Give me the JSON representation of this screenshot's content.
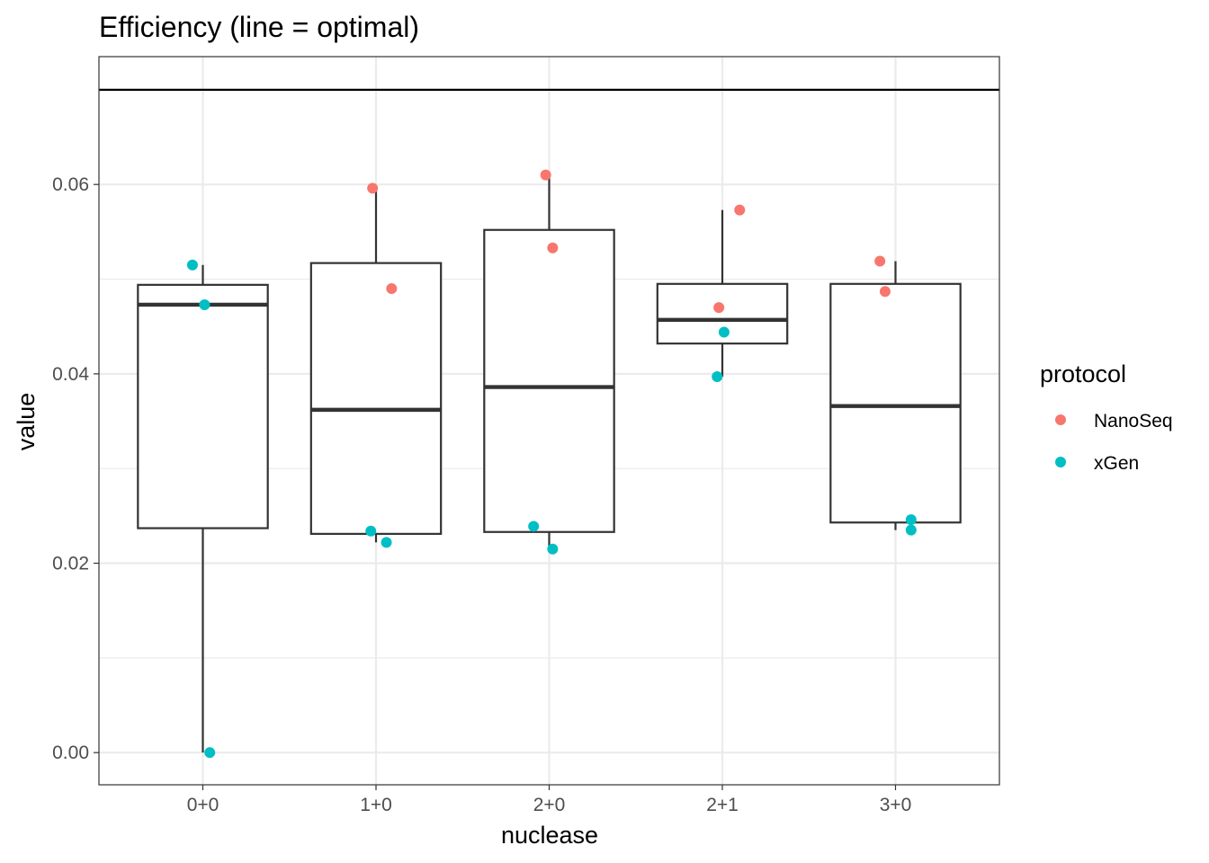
{
  "chart_data": {
    "type": "boxplot",
    "title": "Efficiency (line = optimal)",
    "xlabel": "nuclease",
    "ylabel": "value",
    "categories": [
      "0+0",
      "1+0",
      "2+0",
      "2+1",
      "3+0"
    ],
    "ylim": [
      -0.0034,
      0.0735
    ],
    "yticks": [
      0.0,
      0.02,
      0.04,
      0.06
    ],
    "ytick_labels": [
      "0.00",
      "0.02",
      "0.04",
      "0.06"
    ],
    "reference_line": 0.07,
    "grid": true,
    "legend": {
      "title": "protocol",
      "placement": "right",
      "entries": [
        {
          "name": "NanoSeq",
          "color": "#F8766D"
        },
        {
          "name": "xGen",
          "color": "#00BFC4"
        }
      ]
    },
    "boxes": [
      {
        "category": "0+0",
        "whisker_low": 0.0,
        "q1": 0.0237,
        "median": 0.0473,
        "q3": 0.0494,
        "whisker_high": 0.0515
      },
      {
        "category": "1+0",
        "whisker_low": 0.0222,
        "q1": 0.0231,
        "median": 0.0362,
        "q3": 0.0517,
        "whisker_high": 0.0596
      },
      {
        "category": "2+0",
        "whisker_low": 0.0215,
        "q1": 0.0233,
        "median": 0.0386,
        "q3": 0.0552,
        "whisker_high": 0.061
      },
      {
        "category": "2+1",
        "whisker_low": 0.0397,
        "q1": 0.0432,
        "median": 0.0457,
        "q3": 0.0495,
        "whisker_high": 0.0573
      },
      {
        "category": "3+0",
        "whisker_low": 0.0235,
        "q1": 0.0243,
        "median": 0.0366,
        "q3": 0.0495,
        "whisker_high": 0.0519
      }
    ],
    "points": [
      {
        "category": "0+0",
        "jitter": -0.06,
        "value": 0.0515,
        "protocol": "xGen"
      },
      {
        "category": "0+0",
        "jitter": 0.01,
        "value": 0.0473,
        "protocol": "xGen"
      },
      {
        "category": "0+0",
        "jitter": 0.04,
        "value": 0.0,
        "protocol": "xGen"
      },
      {
        "category": "1+0",
        "jitter": -0.02,
        "value": 0.0596,
        "protocol": "NanoSeq"
      },
      {
        "category": "1+0",
        "jitter": 0.09,
        "value": 0.049,
        "protocol": "NanoSeq"
      },
      {
        "category": "1+0",
        "jitter": -0.03,
        "value": 0.0234,
        "protocol": "xGen"
      },
      {
        "category": "1+0",
        "jitter": 0.06,
        "value": 0.0222,
        "protocol": "xGen"
      },
      {
        "category": "2+0",
        "jitter": -0.02,
        "value": 0.061,
        "protocol": "NanoSeq"
      },
      {
        "category": "2+0",
        "jitter": 0.02,
        "value": 0.0533,
        "protocol": "NanoSeq"
      },
      {
        "category": "2+0",
        "jitter": -0.09,
        "value": 0.0239,
        "protocol": "xGen"
      },
      {
        "category": "2+0",
        "jitter": 0.02,
        "value": 0.0215,
        "protocol": "xGen"
      },
      {
        "category": "2+1",
        "jitter": 0.1,
        "value": 0.0573,
        "protocol": "NanoSeq"
      },
      {
        "category": "2+1",
        "jitter": -0.02,
        "value": 0.047,
        "protocol": "NanoSeq"
      },
      {
        "category": "2+1",
        "jitter": 0.01,
        "value": 0.0444,
        "protocol": "xGen"
      },
      {
        "category": "2+1",
        "jitter": -0.03,
        "value": 0.0397,
        "protocol": "xGen"
      },
      {
        "category": "3+0",
        "jitter": -0.09,
        "value": 0.0519,
        "protocol": "NanoSeq"
      },
      {
        "category": "3+0",
        "jitter": -0.06,
        "value": 0.0487,
        "protocol": "NanoSeq"
      },
      {
        "category": "3+0",
        "jitter": 0.09,
        "value": 0.0246,
        "protocol": "xGen"
      },
      {
        "category": "3+0",
        "jitter": 0.09,
        "value": 0.0235,
        "protocol": "xGen"
      }
    ]
  }
}
